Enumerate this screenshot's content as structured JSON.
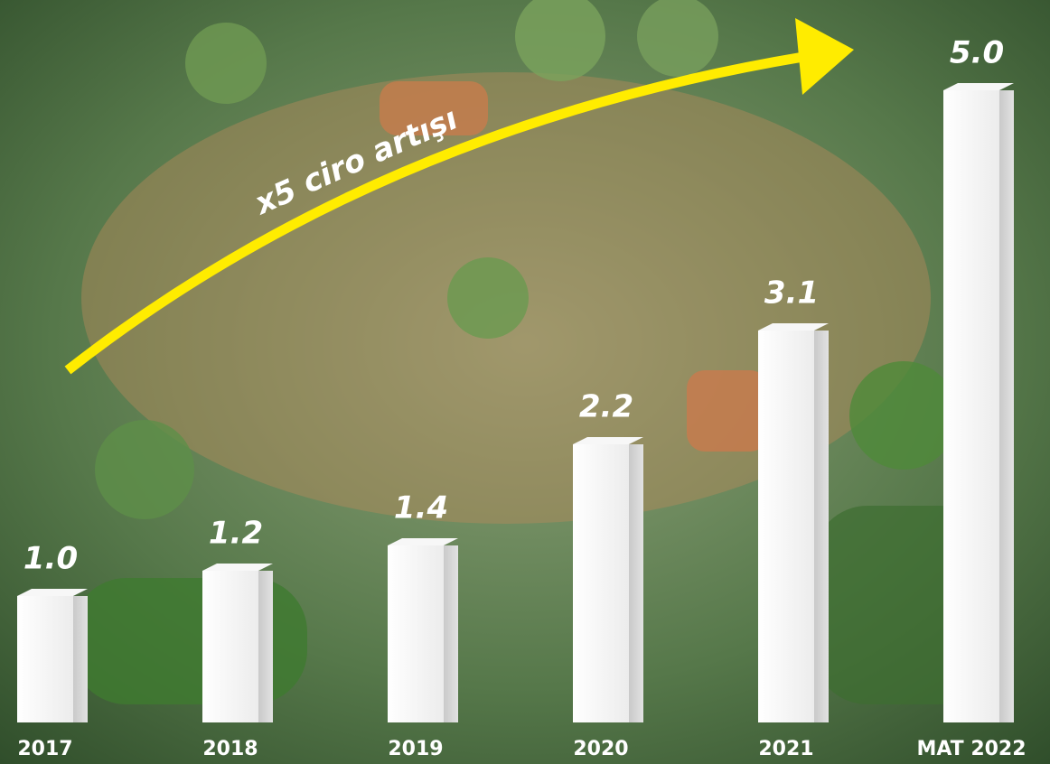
{
  "chart_data": {
    "type": "bar",
    "categories": [
      "2017",
      "2018",
      "2019",
      "2020",
      "2021",
      "MAT 2022"
    ],
    "values": [
      1.0,
      1.2,
      1.4,
      2.2,
      3.1,
      5.0
    ],
    "value_labels": [
      "1.0",
      "1.2",
      "1.4",
      "2.2",
      "3.1",
      "5.0"
    ],
    "color": "#ffffff",
    "annotation": "x5 ciro artışı"
  }
}
